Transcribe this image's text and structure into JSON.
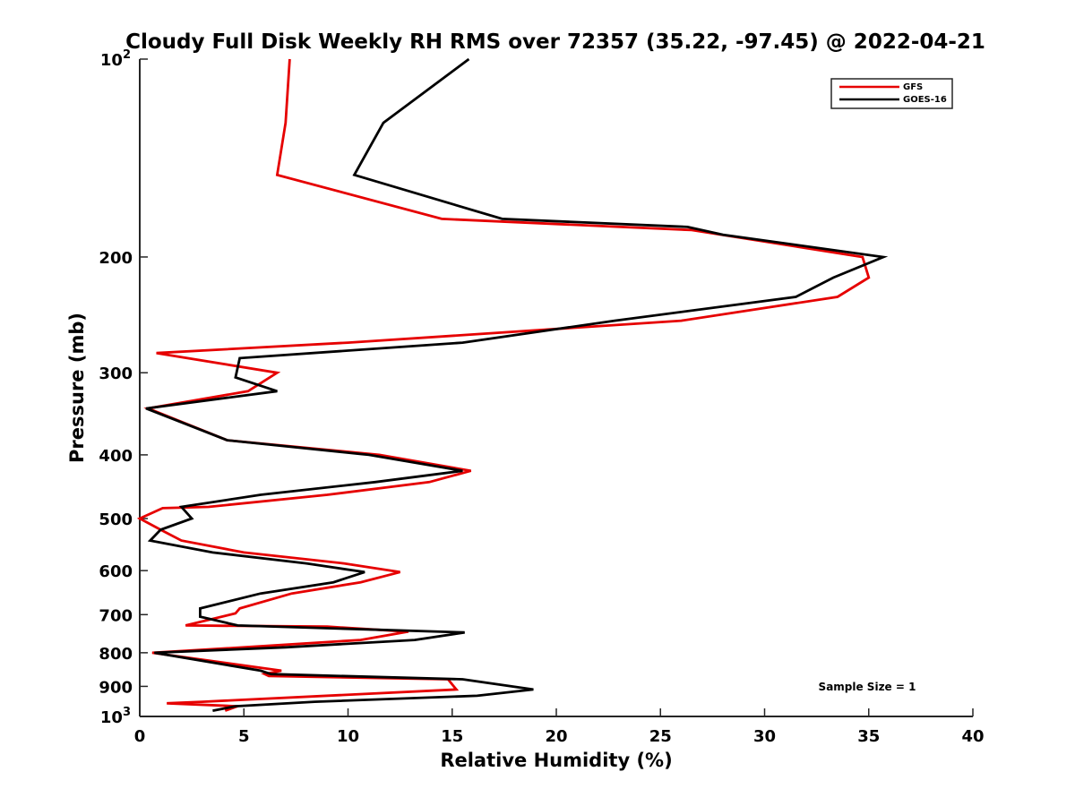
{
  "chart_data": {
    "type": "line",
    "title": "Cloudy Full Disk Weekly RH RMS over 72357 (35.22, -97.45) @ 2022-04-21",
    "xlabel": "Relative Humidity (%)",
    "ylabel": "Pressure (mb)",
    "xlim": [
      0,
      40
    ],
    "ylim": [
      100,
      1000
    ],
    "y_scale": "log",
    "y_reversed": true,
    "x_ticks": [
      0,
      5,
      10,
      15,
      20,
      25,
      30,
      35,
      40
    ],
    "x_tick_labels": [
      "0",
      "5",
      "10",
      "15",
      "20",
      "25",
      "30",
      "35",
      "40"
    ],
    "y_ticks": [
      200,
      300,
      400,
      500,
      600,
      700,
      800,
      900
    ],
    "y_tick_labels": [
      "200",
      "300",
      "400",
      "500",
      "600",
      "700",
      "800",
      "900"
    ],
    "y_power_ticks": [
      {
        "value": 100,
        "base": "10",
        "exp": "2"
      },
      {
        "value": 1000,
        "base": "10",
        "exp": "3"
      }
    ],
    "grid": false,
    "legend_position": "top-right",
    "annotation": "Sample Size = 1",
    "series": [
      {
        "name": "GFS",
        "color": "#e60000",
        "points": [
          [
            7.2,
            100
          ],
          [
            7.0,
            125
          ],
          [
            6.6,
            150
          ],
          [
            14.5,
            175
          ],
          [
            26.5,
            182
          ],
          [
            34.7,
            200
          ],
          [
            35.0,
            215
          ],
          [
            33.5,
            230
          ],
          [
            26.0,
            250
          ],
          [
            10.0,
            270
          ],
          [
            0.8,
            280
          ],
          [
            6.6,
            300
          ],
          [
            5.2,
            320
          ],
          [
            0.4,
            340
          ],
          [
            4.2,
            380
          ],
          [
            11.5,
            400
          ],
          [
            15.9,
            423
          ],
          [
            13.9,
            440
          ],
          [
            9.0,
            460
          ],
          [
            3.3,
            480
          ],
          [
            1.1,
            482
          ],
          [
            0.0,
            500
          ],
          [
            1.0,
            520
          ],
          [
            2.0,
            540
          ],
          [
            5.0,
            563
          ],
          [
            9.8,
            585
          ],
          [
            12.5,
            603
          ],
          [
            10.6,
            625
          ],
          [
            7.3,
            650
          ],
          [
            4.8,
            685
          ],
          [
            4.6,
            697
          ],
          [
            2.2,
            727
          ],
          [
            9.0,
            730
          ],
          [
            12.9,
            743
          ],
          [
            10.6,
            765
          ],
          [
            5.0,
            785
          ],
          [
            0.6,
            800
          ],
          [
            6.8,
            852
          ],
          [
            6.0,
            862
          ],
          [
            6.2,
            868
          ],
          [
            14.8,
            878
          ],
          [
            15.2,
            910
          ],
          [
            3.0,
            950
          ],
          [
            1.3,
            955
          ],
          [
            4.7,
            965
          ],
          [
            4.1,
            980
          ]
        ]
      },
      {
        "name": "GOES-16",
        "color": "#000000",
        "points": [
          [
            15.8,
            100
          ],
          [
            11.7,
            125
          ],
          [
            10.3,
            150
          ],
          [
            17.4,
            175
          ],
          [
            26.3,
            180
          ],
          [
            28.0,
            185
          ],
          [
            35.7,
            200
          ],
          [
            33.3,
            215
          ],
          [
            31.5,
            230
          ],
          [
            22.8,
            250
          ],
          [
            15.5,
            270
          ],
          [
            4.8,
            285
          ],
          [
            4.6,
            305
          ],
          [
            6.6,
            320
          ],
          [
            0.3,
            340
          ],
          [
            4.2,
            380
          ],
          [
            11.0,
            400
          ],
          [
            15.5,
            423
          ],
          [
            11.3,
            440
          ],
          [
            5.8,
            460
          ],
          [
            2.0,
            480
          ],
          [
            2.5,
            500
          ],
          [
            1.0,
            520
          ],
          [
            0.5,
            540
          ],
          [
            3.5,
            563
          ],
          [
            8.0,
            585
          ],
          [
            10.8,
            603
          ],
          [
            9.3,
            625
          ],
          [
            5.8,
            650
          ],
          [
            2.9,
            685
          ],
          [
            2.9,
            705
          ],
          [
            4.7,
            727
          ],
          [
            15.6,
            745
          ],
          [
            13.2,
            765
          ],
          [
            7.0,
            785
          ],
          [
            0.7,
            800
          ],
          [
            5.8,
            852
          ],
          [
            6.3,
            862
          ],
          [
            15.5,
            878
          ],
          [
            18.9,
            910
          ],
          [
            16.2,
            930
          ],
          [
            8.4,
            950
          ],
          [
            4.6,
            965
          ],
          [
            3.5,
            980
          ]
        ]
      }
    ]
  }
}
